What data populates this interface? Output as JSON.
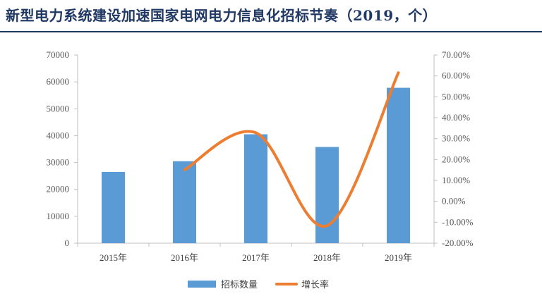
{
  "header": {
    "title": "新型电力系统建设加速国家电网电力信息化招标节奏（2019，个）"
  },
  "chart_data": {
    "type": "bar",
    "title": "新型电力系统建设加速国家电网电力信息化招标节奏（2019，个）",
    "categories": [
      "2015年",
      "2016年",
      "2017年",
      "2018年",
      "2019年"
    ],
    "series": [
      {
        "name": "招标数量",
        "type": "bar",
        "axis": "left",
        "color": "#5b9bd5",
        "values": [
          26500,
          30500,
          40500,
          35800,
          57800
        ]
      },
      {
        "name": "增长率",
        "type": "line",
        "axis": "right",
        "color": "#ed7d31",
        "smooth": true,
        "values": [
          null,
          15.1,
          32.8,
          -11.6,
          61.5
        ]
      }
    ],
    "y_left": {
      "ylim": [
        0,
        70000
      ],
      "ticks": [
        "0",
        "10000",
        "20000",
        "30000",
        "40000",
        "50000",
        "60000",
        "70000"
      ]
    },
    "y_right": {
      "ylim": [
        -20,
        70
      ],
      "ticks": [
        "-20.00%",
        "-10.00%",
        "0.00%",
        "10.00%",
        "20.00%",
        "30.00%",
        "40.00%",
        "50.00%",
        "60.00%",
        "70.00%"
      ]
    },
    "legend": {
      "position": "bottom",
      "items": [
        "招标数量",
        "增长率"
      ]
    },
    "grid": false
  }
}
